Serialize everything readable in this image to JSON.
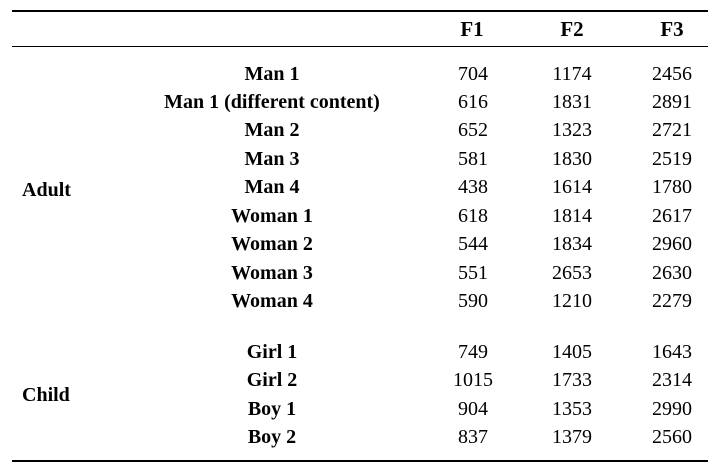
{
  "headers": {
    "c1": "F1",
    "c2": "F2",
    "c3": "F3"
  },
  "groups": [
    {
      "label": "Adult",
      "rows": [
        {
          "name": "Man 1",
          "f1": "704",
          "f2": "1174",
          "f3": "2456"
        },
        {
          "name": "Man 1 (different content)",
          "f1": "616",
          "f2": "1831",
          "f3": "2891"
        },
        {
          "name": "Man 2",
          "f1": "652",
          "f2": "1323",
          "f3": "2721"
        },
        {
          "name": "Man 3",
          "f1": "581",
          "f2": "1830",
          "f3": "2519"
        },
        {
          "name": "Man 4",
          "f1": "438",
          "f2": "1614",
          "f3": "1780"
        },
        {
          "name": "Woman 1",
          "f1": "618",
          "f2": "1814",
          "f3": "2617"
        },
        {
          "name": "Woman 2",
          "f1": "544",
          "f2": "1834",
          "f3": "2960"
        },
        {
          "name": "Woman 3",
          "f1": "551",
          "f2": "2653",
          "f3": "2630"
        },
        {
          "name": "Woman 4",
          "f1": "590",
          "f2": "1210",
          "f3": "2279"
        }
      ]
    },
    {
      "label": "Child",
      "rows": [
        {
          "name": "Girl 1",
          "f1": "749",
          "f2": "1405",
          "f3": "1643"
        },
        {
          "name": "Girl 2",
          "f1": "1015",
          "f2": "1733",
          "f3": "2314"
        },
        {
          "name": "Boy 1",
          "f1": "904",
          "f2": "1353",
          "f3": "2990"
        },
        {
          "name": "Boy 2",
          "f1": "837",
          "f2": "1379",
          "f3": "2560"
        }
      ]
    }
  ]
}
